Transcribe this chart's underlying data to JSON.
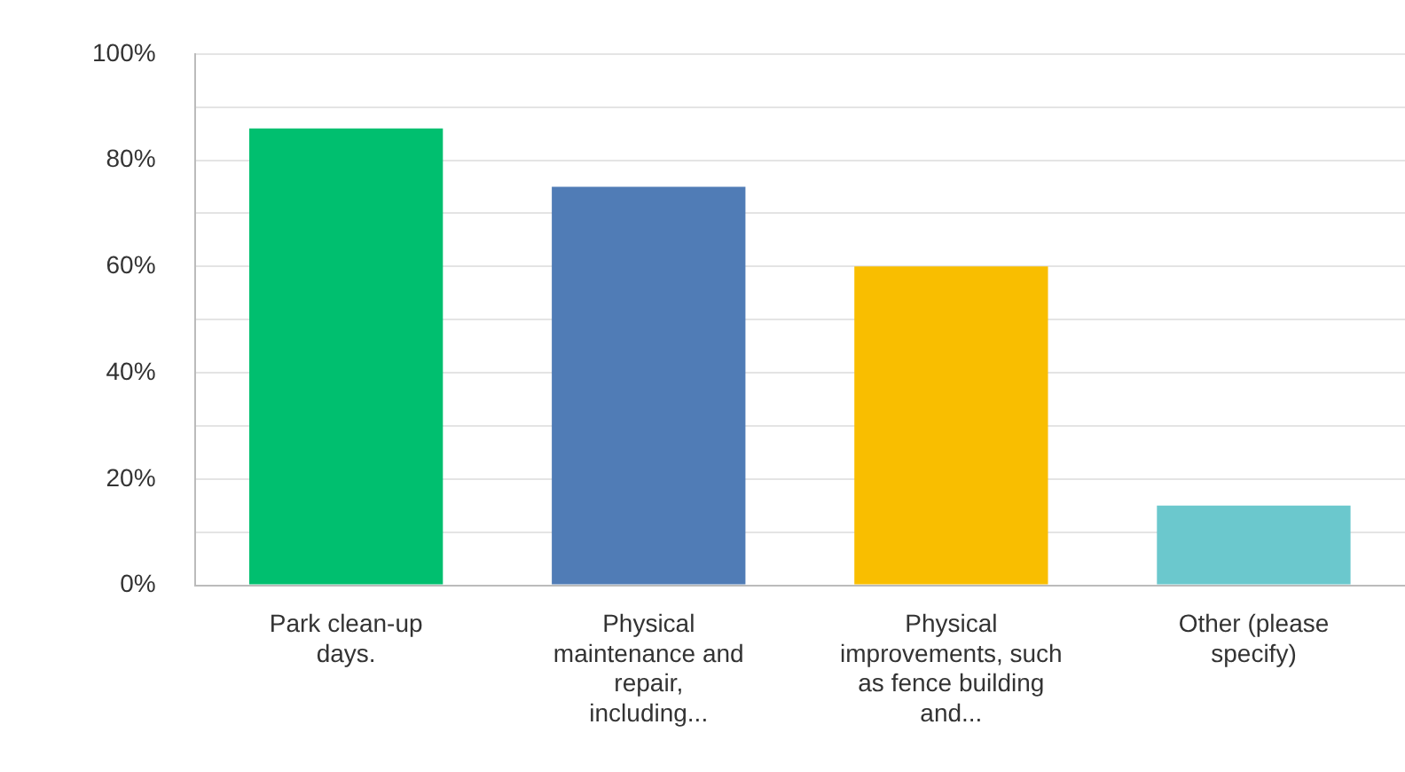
{
  "chart_data": {
    "type": "bar",
    "categories": [
      "Park clean-up days.",
      "Physical maintenance and repair, including...",
      "Physical improvements, such as fence building and...",
      "Other (please specify)"
    ],
    "values": [
      86,
      75,
      60,
      15
    ],
    "colors": [
      "#00bf6f",
      "#507cb6",
      "#f9be00",
      "#6bc8cd"
    ],
    "ylim": [
      0,
      100
    ],
    "yticks": [
      {
        "value": 0,
        "label": "0%"
      },
      {
        "value": 10,
        "label": null
      },
      {
        "value": 20,
        "label": "20%"
      },
      {
        "value": 30,
        "label": null
      },
      {
        "value": 40,
        "label": "40%"
      },
      {
        "value": 50,
        "label": null
      },
      {
        "value": 60,
        "label": "60%"
      },
      {
        "value": 70,
        "label": null
      },
      {
        "value": 80,
        "label": "80%"
      },
      {
        "value": 90,
        "label": null
      },
      {
        "value": 100,
        "label": "100%"
      }
    ],
    "grid": "y"
  }
}
